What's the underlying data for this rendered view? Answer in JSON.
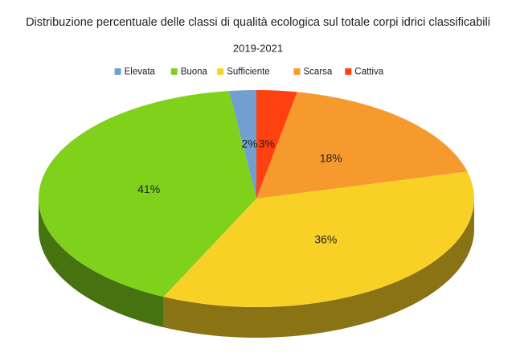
{
  "chart_data": {
    "type": "pie3d",
    "title": "Distribuzione percentuale delle classi di qualità ecologica sul totale corpi idrici classificabili",
    "subtitle": "2019-2021",
    "categories": [
      "Elevata",
      "Buona",
      "Sufficiente",
      "Scarsa",
      "Cattiva"
    ],
    "values": [
      2,
      41,
      36,
      18,
      3
    ],
    "value_labels": [
      "2%",
      "41%",
      "36%",
      "18%",
      "3%"
    ],
    "colors": [
      "#729fcf",
      "#7fd11b",
      "#f9d126",
      "#f79a2e",
      "#ff4010"
    ],
    "legend": "top"
  }
}
